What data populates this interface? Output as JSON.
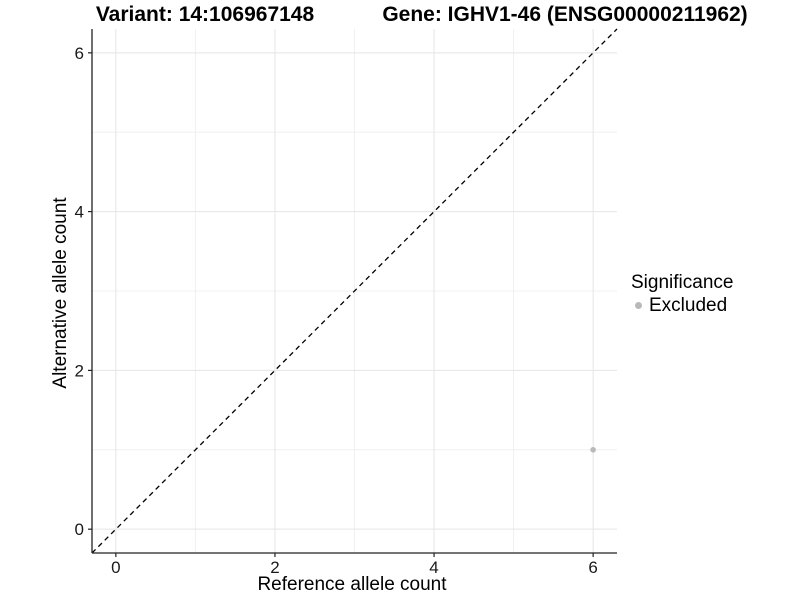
{
  "chart_data": {
    "type": "scatter",
    "title_left": "Variant: 14:106967148",
    "title_right": "Gene: IGHV1-46 (ENSG00000211962)",
    "xlabel": "Reference allele count",
    "ylabel": "Alternative allele count",
    "xlim": [
      -0.3,
      6.3
    ],
    "ylim": [
      -0.3,
      6.3
    ],
    "x_ticks": [
      0,
      2,
      4,
      6
    ],
    "y_ticks": [
      0,
      2,
      4,
      6
    ],
    "x_minor_ticks": [
      1,
      3,
      5
    ],
    "y_minor_ticks": [
      1,
      3,
      5
    ],
    "grid": "major+minor",
    "points": [
      {
        "x": 6,
        "y": 1,
        "significance": "Excluded"
      }
    ],
    "identity_line": {
      "slope": 1,
      "intercept": 0,
      "style": "dashed",
      "color": "#000000"
    },
    "legend": {
      "title": "Significance",
      "position": "right",
      "entries": [
        {
          "label": "Excluded",
          "color": "#b9b9b9"
        }
      ]
    },
    "colors": {
      "point": "#b9b9b9",
      "grid_major": "#e5e5e5",
      "grid_minor": "#f0f0f0",
      "axis_line": "#222222",
      "tick_label": "#1a1a1a"
    }
  }
}
